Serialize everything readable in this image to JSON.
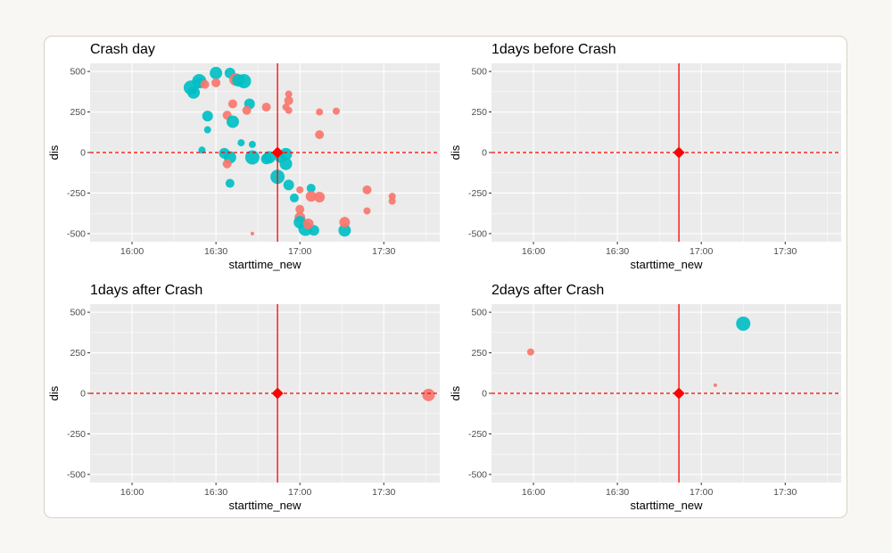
{
  "colors": {
    "panel_bg": "#ebebeb",
    "grid_major": "#ffffff",
    "series_a": "#f8766d",
    "series_b": "#00bfc4",
    "crash_marker": "#ff0000"
  },
  "chart_data": [
    {
      "type": "scatter",
      "title": "Crash day",
      "xlabel": "starttime_new",
      "ylabel": "dis",
      "x_ticks": [
        "16:00",
        "16:30",
        "17:00",
        "17:30"
      ],
      "y_ticks": [
        "500",
        "250",
        "0",
        "-250",
        "-500"
      ],
      "xlim": [
        "15:45",
        "17:50"
      ],
      "ylim": [
        -550,
        550
      ],
      "crash_point": {
        "time": "16:52",
        "dis": 0
      },
      "reference_lines": {
        "vertical_at": "16:52",
        "horizontal_at": 0
      },
      "grid": true,
      "points": [
        {
          "time": "16:21",
          "dis": 400,
          "size": 8,
          "color": "series_b"
        },
        {
          "time": "16:22",
          "dis": 370,
          "size": 7,
          "color": "series_b"
        },
        {
          "time": "16:24",
          "dis": 440,
          "size": 8,
          "color": "series_b"
        },
        {
          "time": "16:24",
          "dis": 430,
          "size": 6,
          "color": "series_b"
        },
        {
          "time": "16:26",
          "dis": 420,
          "size": 5,
          "color": "series_a"
        },
        {
          "time": "16:30",
          "dis": 490,
          "size": 7,
          "color": "series_b"
        },
        {
          "time": "16:30",
          "dis": 430,
          "size": 5,
          "color": "series_a"
        },
        {
          "time": "16:35",
          "dis": 490,
          "size": 6,
          "color": "series_b"
        },
        {
          "time": "16:37",
          "dis": 450,
          "size": 7,
          "color": "series_a"
        },
        {
          "time": "16:38",
          "dis": 445,
          "size": 7,
          "color": "series_b"
        },
        {
          "time": "16:40",
          "dis": 440,
          "size": 8,
          "color": "series_b"
        },
        {
          "time": "16:36",
          "dis": 300,
          "size": 5,
          "color": "series_a"
        },
        {
          "time": "16:34",
          "dis": 230,
          "size": 5,
          "color": "series_a"
        },
        {
          "time": "16:36",
          "dis": 190,
          "size": 7,
          "color": "series_b"
        },
        {
          "time": "16:27",
          "dis": 225,
          "size": 6,
          "color": "series_b"
        },
        {
          "time": "16:27",
          "dis": 140,
          "size": 4,
          "color": "series_b"
        },
        {
          "time": "16:42",
          "dis": 300,
          "size": 6,
          "color": "series_b"
        },
        {
          "time": "16:41",
          "dis": 260,
          "size": 5,
          "color": "series_a"
        },
        {
          "time": "16:48",
          "dis": 280,
          "size": 5,
          "color": "series_a"
        },
        {
          "time": "16:39",
          "dis": 60,
          "size": 4,
          "color": "series_b"
        },
        {
          "time": "16:43",
          "dis": 50,
          "size": 4,
          "color": "series_b"
        },
        {
          "time": "16:25",
          "dis": 15,
          "size": 4,
          "color": "series_b"
        },
        {
          "time": "16:33",
          "dis": -5,
          "size": 6,
          "color": "series_b"
        },
        {
          "time": "16:35",
          "dis": -30,
          "size": 7,
          "color": "series_b"
        },
        {
          "time": "16:34",
          "dis": -70,
          "size": 5,
          "color": "series_a"
        },
        {
          "time": "16:43",
          "dis": -30,
          "size": 8,
          "color": "series_b"
        },
        {
          "time": "16:48",
          "dis": -40,
          "size": 6,
          "color": "series_b"
        },
        {
          "time": "16:49",
          "dis": -30,
          "size": 7,
          "color": "series_b"
        },
        {
          "time": "16:55",
          "dis": -10,
          "size": 7,
          "color": "series_b"
        },
        {
          "time": "16:55",
          "dis": -70,
          "size": 7,
          "color": "series_b"
        },
        {
          "time": "16:53",
          "dis": -30,
          "size": 6,
          "color": "series_b"
        },
        {
          "time": "16:52",
          "dis": -150,
          "size": 8,
          "color": "series_b"
        },
        {
          "time": "16:56",
          "dis": -200,
          "size": 6,
          "color": "series_b"
        },
        {
          "time": "16:35",
          "dis": -190,
          "size": 5,
          "color": "series_b"
        },
        {
          "time": "16:43",
          "dis": -500,
          "size": 2,
          "color": "series_a"
        },
        {
          "time": "16:56",
          "dis": 360,
          "size": 4,
          "color": "series_a"
        },
        {
          "time": "16:56",
          "dis": 320,
          "size": 5,
          "color": "series_a"
        },
        {
          "time": "16:55",
          "dis": 280,
          "size": 4,
          "color": "series_a"
        },
        {
          "time": "16:56",
          "dis": 260,
          "size": 4,
          "color": "series_a"
        },
        {
          "time": "17:07",
          "dis": 250,
          "size": 4,
          "color": "series_a"
        },
        {
          "time": "17:13",
          "dis": 255,
          "size": 4,
          "color": "series_a"
        },
        {
          "time": "17:07",
          "dis": 110,
          "size": 5,
          "color": "series_a"
        },
        {
          "time": "17:00",
          "dis": -230,
          "size": 4,
          "color": "series_a"
        },
        {
          "time": "16:58",
          "dis": -280,
          "size": 5,
          "color": "series_b"
        },
        {
          "time": "17:04",
          "dis": -220,
          "size": 5,
          "color": "series_b"
        },
        {
          "time": "17:04",
          "dis": -270,
          "size": 6,
          "color": "series_a"
        },
        {
          "time": "17:07",
          "dis": -275,
          "size": 6,
          "color": "series_a"
        },
        {
          "time": "17:00",
          "dis": -350,
          "size": 5,
          "color": "series_a"
        },
        {
          "time": "17:00",
          "dis": -400,
          "size": 6,
          "color": "series_a"
        },
        {
          "time": "17:00",
          "dis": -430,
          "size": 7,
          "color": "series_b"
        },
        {
          "time": "17:02",
          "dis": -470,
          "size": 8,
          "color": "series_b"
        },
        {
          "time": "17:05",
          "dis": -480,
          "size": 6,
          "color": "series_b"
        },
        {
          "time": "17:03",
          "dis": -440,
          "size": 6,
          "color": "series_a"
        },
        {
          "time": "17:16",
          "dis": -480,
          "size": 7,
          "color": "series_b"
        },
        {
          "time": "17:16",
          "dis": -430,
          "size": 6,
          "color": "series_a"
        },
        {
          "time": "17:24",
          "dis": -230,
          "size": 5,
          "color": "series_a"
        },
        {
          "time": "17:24",
          "dis": -360,
          "size": 4,
          "color": "series_a"
        },
        {
          "time": "17:33",
          "dis": -270,
          "size": 4,
          "color": "series_a"
        },
        {
          "time": "17:33",
          "dis": -300,
          "size": 4,
          "color": "series_a"
        }
      ]
    },
    {
      "type": "scatter",
      "title": "1days before Crash",
      "xlabel": "starttime_new",
      "ylabel": "dis",
      "x_ticks": [
        "16:00",
        "16:30",
        "17:00",
        "17:30"
      ],
      "y_ticks": [
        "500",
        "250",
        "0",
        "-250",
        "-500"
      ],
      "xlim": [
        "15:45",
        "17:50"
      ],
      "ylim": [
        -550,
        550
      ],
      "crash_point": {
        "time": "16:52",
        "dis": 0
      },
      "reference_lines": {
        "vertical_at": "16:52",
        "horizontal_at": 0
      },
      "grid": true,
      "points": []
    },
    {
      "type": "scatter",
      "title": "1days after Crash",
      "xlabel": "starttime_new",
      "ylabel": "dis",
      "x_ticks": [
        "16:00",
        "16:30",
        "17:00",
        "17:30"
      ],
      "y_ticks": [
        "500",
        "250",
        "0",
        "-250",
        "-500"
      ],
      "xlim": [
        "15:45",
        "17:50"
      ],
      "ylim": [
        -550,
        550
      ],
      "crash_point": {
        "time": "16:52",
        "dis": 0
      },
      "reference_lines": {
        "vertical_at": "16:52",
        "horizontal_at": 0
      },
      "grid": true,
      "points": [
        {
          "time": "17:46",
          "dis": -10,
          "size": 7,
          "color": "series_a"
        }
      ]
    },
    {
      "type": "scatter",
      "title": "2days after Crash",
      "xlabel": "starttime_new",
      "ylabel": "dis",
      "x_ticks": [
        "16:00",
        "16:30",
        "17:00",
        "17:30"
      ],
      "y_ticks": [
        "500",
        "250",
        "0",
        "-250",
        "-500"
      ],
      "xlim": [
        "15:45",
        "17:50"
      ],
      "ylim": [
        -550,
        550
      ],
      "crash_point": {
        "time": "16:52",
        "dis": 0
      },
      "reference_lines": {
        "vertical_at": "16:52",
        "horizontal_at": 0
      },
      "grid": true,
      "points": [
        {
          "time": "15:59",
          "dis": 255,
          "size": 4,
          "color": "series_a"
        },
        {
          "time": "17:05",
          "dis": 50,
          "size": 2,
          "color": "series_a"
        },
        {
          "time": "17:15",
          "dis": 430,
          "size": 8,
          "color": "series_b"
        }
      ]
    }
  ]
}
